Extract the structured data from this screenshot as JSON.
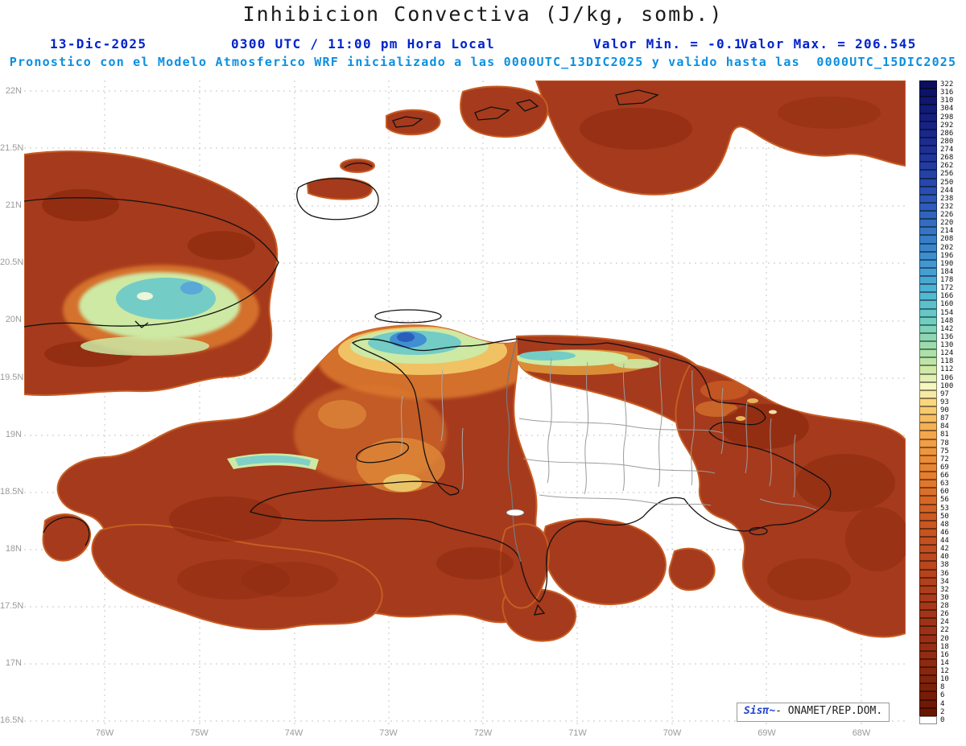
{
  "title": "Inhibicion Convectiva (J/kg, somb.)",
  "header": {
    "date": "13-Dic-2025",
    "time": "0300 UTC / 11:00 pm Hora Local",
    "min": "Valor Min. = -0.1",
    "max": "Valor Max. = 206.545",
    "forecast": "Pronostico con el Modelo Atmosferico WRF inicializado a las 0000UTC_13DIC2025 y valido hasta las  0000UTC_15DIC2025"
  },
  "axes": {
    "lat": [
      "22N",
      "21.5N",
      "21N",
      "20.5N",
      "20N",
      "19.5N",
      "19N",
      "18.5N",
      "18N",
      "17.5N",
      "17N",
      "16.5N"
    ],
    "lon": [
      "76W",
      "75W",
      "74W",
      "73W",
      "72W",
      "71W",
      "70W",
      "69W",
      "68W"
    ]
  },
  "colorbar": {
    "values": [
      322,
      316,
      310,
      304,
      298,
      292,
      286,
      280,
      274,
      268,
      262,
      256,
      250,
      244,
      238,
      232,
      226,
      220,
      214,
      208,
      202,
      196,
      190,
      184,
      178,
      172,
      166,
      160,
      154,
      148,
      142,
      136,
      130,
      124,
      118,
      112,
      106,
      100,
      97,
      93,
      90,
      87,
      84,
      81,
      78,
      75,
      72,
      69,
      66,
      63,
      60,
      56,
      53,
      50,
      48,
      46,
      44,
      42,
      40,
      38,
      36,
      34,
      32,
      30,
      28,
      26,
      24,
      22,
      20,
      18,
      16,
      14,
      12,
      10,
      8,
      6,
      4,
      2,
      0
    ],
    "zero_color": "#ffffff",
    "stops": [
      [
        2,
        "#6b1600"
      ],
      [
        14,
        "#8e2a10"
      ],
      [
        26,
        "#a23417"
      ],
      [
        38,
        "#b9461d"
      ],
      [
        50,
        "#cc5a22"
      ],
      [
        60,
        "#dd7028"
      ],
      [
        72,
        "#ec8c35"
      ],
      [
        84,
        "#f5b053"
      ],
      [
        93,
        "#fad77e"
      ],
      [
        100,
        "#f5f6c0"
      ],
      [
        112,
        "#cfeaa6"
      ],
      [
        130,
        "#9cdcab"
      ],
      [
        148,
        "#6fcec0"
      ],
      [
        166,
        "#52b8d3"
      ],
      [
        184,
        "#449fd5"
      ],
      [
        202,
        "#3a86cc"
      ],
      [
        226,
        "#2f64bc"
      ],
      [
        250,
        "#2647ab"
      ],
      [
        274,
        "#1e3096"
      ],
      [
        298,
        "#141f7e"
      ],
      [
        322,
        "#0a0f5e"
      ]
    ]
  },
  "credit": {
    "logo": "Sisπ",
    "tilde": "~",
    "text": "- ONAMET/REP.DOM."
  },
  "chart_data": {
    "type": "heatmap",
    "title": "Inhibicion Convectiva (J/kg, somb.)",
    "variable": "Convective Inhibition (CIN), shaded",
    "units": "J/kg",
    "valid": "13-Dic-2025 0300 UTC / 11:00 pm Hora Local",
    "model_run": "WRF inicializado a las 0000UTC_13DIC2025, valido hasta 0000UTC_15DIC2025",
    "value_min": -0.1,
    "value_max": 206.545,
    "lon_extent_deg": [
      -76.85,
      -67.5
    ],
    "lat_extent_deg": [
      16.45,
      22.1
    ],
    "levels_jkg": [
      0,
      2,
      4,
      6,
      8,
      10,
      12,
      14,
      16,
      18,
      20,
      22,
      24,
      26,
      28,
      30,
      32,
      34,
      36,
      38,
      40,
      42,
      44,
      46,
      48,
      50,
      53,
      56,
      60,
      63,
      66,
      69,
      72,
      75,
      78,
      81,
      84,
      87,
      90,
      93,
      97,
      100,
      106,
      112,
      118,
      124,
      130,
      136,
      142,
      148,
      154,
      160,
      166,
      172,
      178,
      184,
      190,
      196,
      202,
      208,
      214,
      220,
      226,
      232,
      238,
      244,
      250,
      256,
      262,
      268,
      274,
      280,
      286,
      292,
      298,
      304,
      310,
      316,
      322
    ],
    "legend_position": "right",
    "grid": "dashed gray graticule every 0.5 deg lat and 1 deg lon",
    "features": [
      {
        "region": "open ocean around eastern Cuba, Hispaniola and southeastern Bahamas",
        "cin_jkg": [
          8,
          30
        ],
        "shade": "dark brick red"
      },
      {
        "region": "interior of the Dominican Republic and gaps south/north of the islands",
        "cin_jkg": [
          0,
          2
        ],
        "shade": "white"
      },
      {
        "region": "eastern Cuba interior",
        "cin_jkg": [
          80,
          170
        ],
        "shade": "yellow-green to cyan with small blue spot"
      },
      {
        "region": "north Haiti coast near Ile de la Tortue",
        "cin_jkg": [
          100,
          206.5
        ],
        "shade": "green-cyan band with blue core (field maximum 206.545)"
      },
      {
        "region": "fringes of the dark red areas and Haiti interior",
        "cin_jkg": [
          30,
          100
        ],
        "shade": "orange to pale yellow"
      }
    ]
  }
}
